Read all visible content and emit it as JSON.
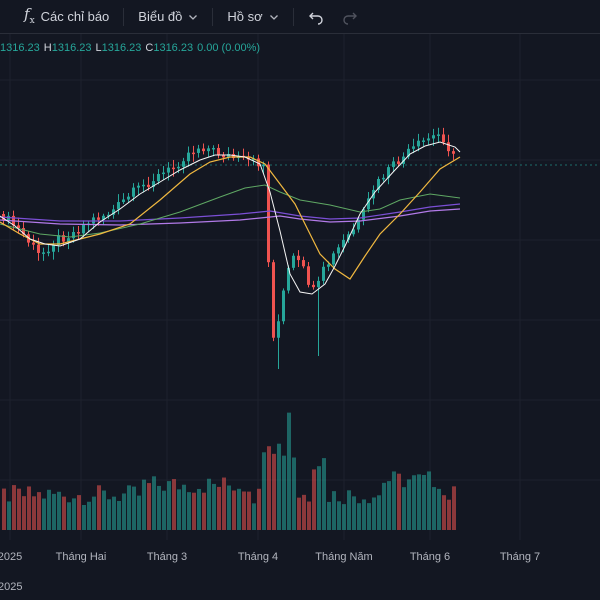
{
  "toolbar": {
    "indicators_label": "Các chỉ báo",
    "chart_label": "Biểu đồ",
    "profile_label": "Hồ sơ"
  },
  "ohlc": {
    "o_value": "1316.23",
    "h_label": "H",
    "h_value": "1316.23",
    "l_label": "L",
    "l_value": "1316.23",
    "c_label": "C",
    "c_value": "1316.23",
    "change": "0.00 (0.00%)"
  },
  "colors": {
    "background": "#131722",
    "up": "#26a69a",
    "down": "#ef5350",
    "ma_fast": "#f5f5f5",
    "ma_mid": "#f0b840",
    "ma_slow": "#5fa864",
    "ma_long1": "#7b4fd6",
    "ma_long2": "#b27ae8"
  },
  "x_axis": {
    "labels": [
      "2025",
      "Tháng Hai",
      "Tháng 3",
      "Tháng 4",
      "Tháng Năm",
      "Tháng 6",
      "Tháng 7",
      ""
    ]
  }
}
